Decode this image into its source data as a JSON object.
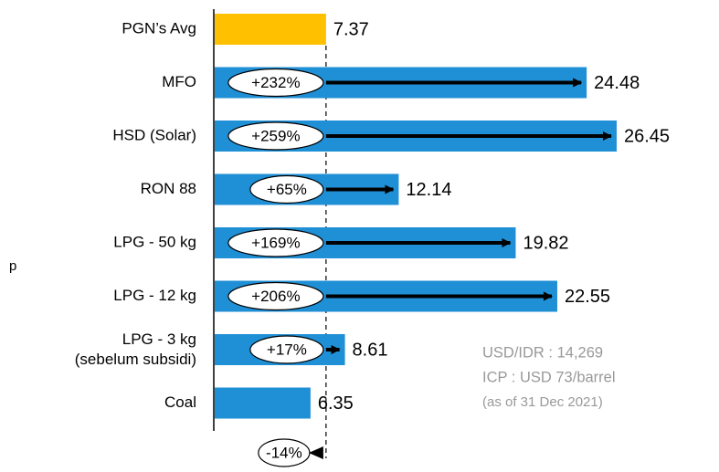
{
  "chart_data": {
    "type": "bar",
    "categories": [
      "PGN’s Avg",
      "MFO",
      "HSD (Solar)",
      "RON 88",
      "LPG - 50 kg",
      "LPG - 12  kg",
      [
        "LPG - 3 kg",
        "(sebelum subsidi)"
      ],
      "Coal"
    ],
    "values": [
      7.37,
      24.48,
      26.45,
      12.14,
      19.82,
      22.55,
      8.61,
      6.35
    ],
    "colors": [
      "#ffc000",
      "#1f8fd6",
      "#1f8fd6",
      "#1f8fd6",
      "#1f8fd6",
      "#1f8fd6",
      "#1f8fd6",
      "#1f8fd6"
    ],
    "changes": [
      null,
      "+232%",
      "+259%",
      "+65%",
      "+169%",
      "+206%",
      "+17%",
      "-14%"
    ],
    "annotations": [
      "USD/IDR : 14,269",
      "ICP : USD 73/barrel",
      "(as of  31 Dec 2021)"
    ],
    "stray_text": "p"
  }
}
